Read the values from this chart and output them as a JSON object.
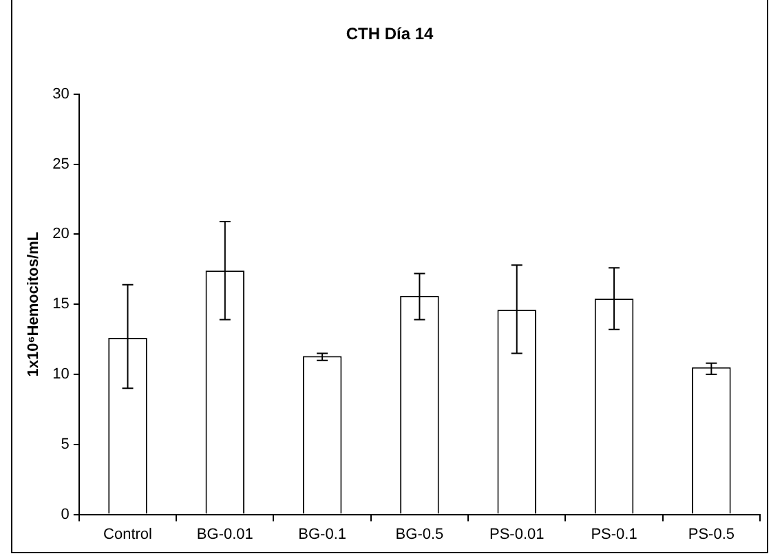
{
  "chart_data": {
    "type": "bar",
    "title": "CTH Día 14",
    "ylabel": "1x10⁶Hemocitos/mL",
    "categories": [
      "Control",
      "BG-0.01",
      "BG-0.1",
      "BG-0.5",
      "PS-0.01",
      "PS-0.1",
      "PS-0.5"
    ],
    "values": [
      12.6,
      17.4,
      11.3,
      15.6,
      14.6,
      15.4,
      10.5
    ],
    "errors": [
      [
        9.0,
        16.4
      ],
      [
        13.9,
        20.9
      ],
      [
        11.0,
        11.5
      ],
      [
        13.9,
        17.2
      ],
      [
        11.5,
        17.8
      ],
      [
        13.2,
        17.6
      ],
      [
        10.0,
        10.8
      ]
    ],
    "color": "#ffffff",
    "ylim": [
      0,
      30
    ],
    "yticks": [
      0,
      5,
      10,
      15,
      20,
      25,
      30
    ],
    "grid": false,
    "legend": false
  }
}
